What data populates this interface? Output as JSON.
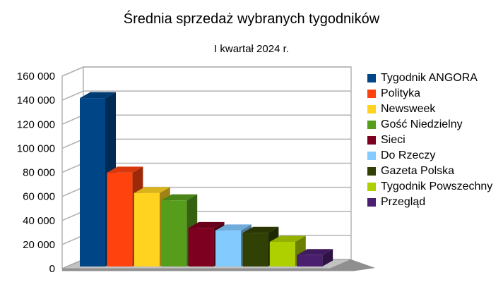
{
  "chart_data": {
    "type": "bar",
    "projection": "3d",
    "title": "Średnia sprzedaż wybranych tygodników",
    "subtitle": "I kwartał 2024 r.",
    "categories": [
      "Tygodnik ANGORA",
      "Polityka",
      "Newsweek",
      "Gość Niedzielny",
      "Sieci",
      "Do Rzeczy",
      "Gazeta Polska",
      "Tygodnik Powszechny",
      "Przegląd"
    ],
    "values": [
      140000,
      78000,
      61000,
      55000,
      32000,
      30000,
      28000,
      20500,
      9500
    ],
    "colors": [
      "#004586",
      "#ff420e",
      "#ffd320",
      "#579d1c",
      "#7e0021",
      "#83caff",
      "#314004",
      "#aecf00",
      "#4b1f6f"
    ],
    "ylim": [
      0,
      160000
    ],
    "ytick_step": 20000,
    "ytick_labels": [
      "0",
      "20 000",
      "40 000",
      "60 000",
      "80 000",
      "100 000",
      "120 000",
      "140 000",
      "160 000"
    ],
    "xlabel": "",
    "ylabel": "",
    "legend_position": "right",
    "grid": true,
    "background_color": "#ffffff",
    "wall_color": "#ffffff",
    "floor_color": "#c2c2c2",
    "floor_edge_color": "#8f8f8f",
    "gridline_color": "#b3b3b3",
    "text_color": "#000000"
  }
}
